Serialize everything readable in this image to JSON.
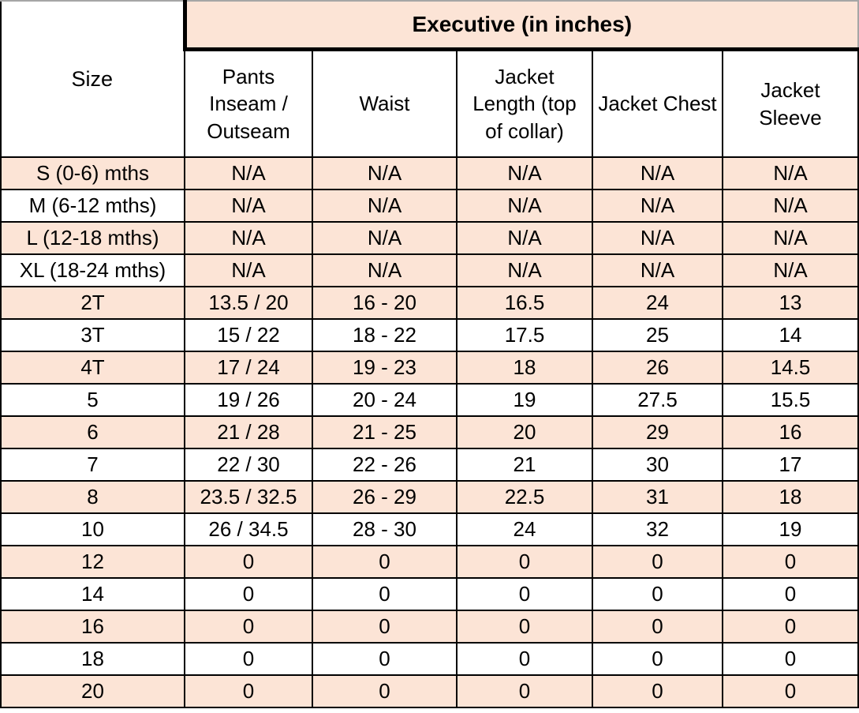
{
  "chart_data": {
    "type": "table",
    "title": "Executive (in inches)",
    "corner_header": "Size",
    "columns": [
      "Pants Inseam / Outseam",
      "Waist",
      "Jacket Length (top of collar)",
      "Jacket Chest",
      "Jacket Sleeve"
    ],
    "rows": [
      {
        "size": "S (0-6) mths",
        "values": [
          "N/A",
          "N/A",
          "N/A",
          "N/A",
          "N/A"
        ]
      },
      {
        "size": "M (6-12 mths)",
        "values": [
          "N/A",
          "N/A",
          "N/A",
          "N/A",
          "N/A"
        ]
      },
      {
        "size": "L (12-18 mths)",
        "values": [
          "N/A",
          "N/A",
          "N/A",
          "N/A",
          "N/A"
        ]
      },
      {
        "size": "XL (18-24 mths)",
        "values": [
          "N/A",
          "N/A",
          "N/A",
          "N/A",
          "N/A"
        ]
      },
      {
        "size": "2T",
        "values": [
          "13.5 / 20",
          "16 - 20",
          "16.5",
          "24",
          "13"
        ]
      },
      {
        "size": "3T",
        "values": [
          "15 / 22",
          "18 - 22",
          "17.5",
          "25",
          "14"
        ]
      },
      {
        "size": "4T",
        "values": [
          "17 / 24",
          "19 - 23",
          "18",
          "26",
          "14.5"
        ]
      },
      {
        "size": "5",
        "values": [
          "19 / 26",
          "20 - 24",
          "19",
          "27.5",
          "15.5"
        ]
      },
      {
        "size": "6",
        "values": [
          "21 / 28",
          "21 - 25",
          "20",
          "29",
          "16"
        ]
      },
      {
        "size": "7",
        "values": [
          "22 / 30",
          "22 - 26",
          "21",
          "30",
          "17"
        ]
      },
      {
        "size": "8",
        "values": [
          "23.5 / 32.5",
          "26 - 29",
          "22.5",
          "31",
          "18"
        ]
      },
      {
        "size": "10",
        "values": [
          "26 / 34.5",
          "28 - 30",
          "24",
          "32",
          "19"
        ]
      },
      {
        "size": "12",
        "values": [
          "0",
          "0",
          "0",
          "0",
          "0"
        ]
      },
      {
        "size": "14",
        "values": [
          "0",
          "0",
          "0",
          "0",
          "0"
        ]
      },
      {
        "size": "16",
        "values": [
          "0",
          "0",
          "0",
          "0",
          "0"
        ]
      },
      {
        "size": "18",
        "values": [
          "0",
          "0",
          "0",
          "0",
          "0"
        ]
      },
      {
        "size": "20",
        "values": [
          "0",
          "0",
          "0",
          "0",
          "0"
        ]
      }
    ]
  },
  "colors": {
    "row_shade": "#fce4d6",
    "grid_line": "#000000",
    "outer_top_line": "#a6a6a6",
    "text": "#000000"
  }
}
